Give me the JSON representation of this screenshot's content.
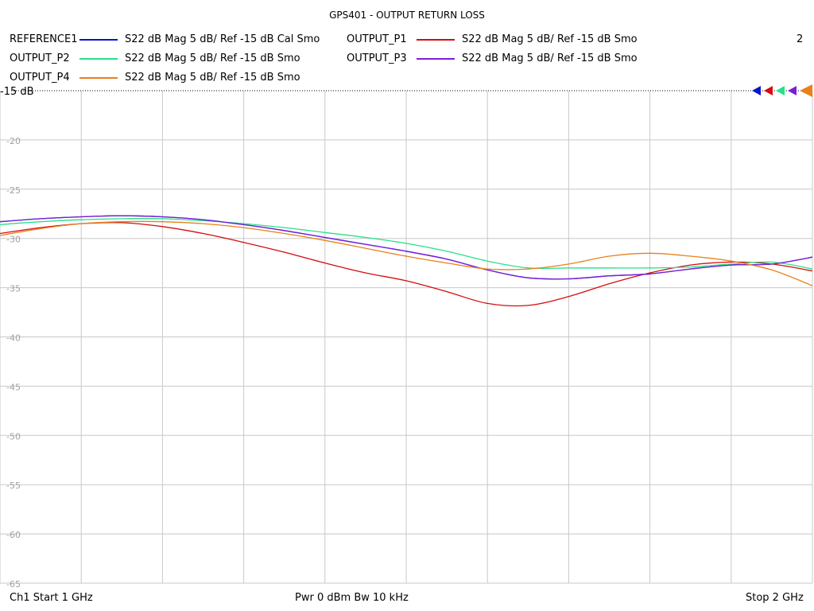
{
  "title": "GPS401 - OUTPUT RETURN LOSS",
  "channel_number": "2",
  "legend": [
    {
      "name": "REFERENCE1",
      "desc": "S22  dB Mag  5 dB/ Ref -15 dB  Cal Smo",
      "color": "#0a14c8"
    },
    {
      "name": "OUTPUT_P1",
      "desc": "S22  dB Mag  5 dB/ Ref -15 dB  Smo",
      "color": "#d40d0d"
    },
    {
      "name": "OUTPUT_P2",
      "desc": "S22  dB Mag  5 dB/ Ref -15 dB  Smo",
      "color": "#27e08a"
    },
    {
      "name": "OUTPUT_P3",
      "desc": "S22  dB Mag  5 dB/ Ref -15 dB  Smo",
      "color": "#7b1fd6"
    },
    {
      "name": "OUTPUT_P4",
      "desc": "S22  dB Mag  5 dB/ Ref -15 dB  Smo",
      "color": "#e8801c"
    }
  ],
  "footer": {
    "start": "Ch1  Start  1 GHz",
    "power": "Pwr  0 dBm  Bw  10 kHz",
    "stop": "Stop  2 GHz"
  },
  "chart_data": {
    "type": "line",
    "x_unit": "GHz",
    "xlim": [
      1.0,
      2.0
    ],
    "ylim": [
      -65,
      -15
    ],
    "y_ticks": [
      -15,
      -20,
      -25,
      -30,
      -35,
      -40,
      -45,
      -50,
      -55,
      -60,
      -65
    ],
    "y_tick_labels": [
      "-15 dB",
      "-20",
      "-25",
      "-30",
      "-35",
      "-40",
      "-45",
      "-50",
      "-55",
      "-60",
      "-65"
    ],
    "x_divisions": 10,
    "grid": true,
    "reference_line": -15,
    "x": [
      1.0,
      1.05,
      1.1,
      1.15,
      1.2,
      1.25,
      1.3,
      1.35,
      1.4,
      1.45,
      1.5,
      1.55,
      1.6,
      1.65,
      1.7,
      1.75,
      1.8,
      1.85,
      1.9,
      1.95,
      2.0
    ],
    "series": [
      {
        "name": "REFERENCE1",
        "color": "#0a14c8",
        "values": [
          -28.3,
          -28.0,
          -27.8,
          -27.7,
          -27.8,
          -28.1,
          -28.6,
          -29.2,
          -29.9,
          -30.6,
          -31.3,
          -32.1,
          -33.2,
          -34.0,
          -34.1,
          -33.8,
          -33.6,
          -33.1,
          -32.7,
          -32.6,
          -31.9
        ]
      },
      {
        "name": "OUTPUT_P1",
        "color": "#d40d0d",
        "values": [
          -29.5,
          -28.9,
          -28.5,
          -28.4,
          -28.8,
          -29.5,
          -30.4,
          -31.4,
          -32.5,
          -33.5,
          -34.3,
          -35.4,
          -36.6,
          -36.8,
          -35.9,
          -34.6,
          -33.5,
          -32.7,
          -32.4,
          -32.6,
          -33.3
        ]
      },
      {
        "name": "OUTPUT_P2",
        "color": "#27e08a",
        "values": [
          -28.6,
          -28.3,
          -28.1,
          -28.0,
          -28.0,
          -28.2,
          -28.5,
          -28.9,
          -29.4,
          -29.9,
          -30.5,
          -31.3,
          -32.3,
          -33.0,
          -33.0,
          -33.0,
          -33.0,
          -32.9,
          -32.6,
          -32.4,
          -33.1
        ]
      },
      {
        "name": "OUTPUT_P3",
        "color": "#7b1fd6",
        "values": [
          -28.3,
          -28.0,
          -27.8,
          -27.7,
          -27.8,
          -28.1,
          -28.6,
          -29.2,
          -29.9,
          -30.6,
          -31.3,
          -32.1,
          -33.2,
          -34.0,
          -34.1,
          -33.8,
          -33.6,
          -33.1,
          -32.7,
          -32.6,
          -31.9
        ]
      },
      {
        "name": "OUTPUT_P4",
        "color": "#e8801c",
        "values": [
          -29.7,
          -29.0,
          -28.5,
          -28.3,
          -28.3,
          -28.5,
          -28.9,
          -29.5,
          -30.2,
          -31.0,
          -31.8,
          -32.5,
          -33.1,
          -33.1,
          -32.6,
          -31.8,
          -31.5,
          -31.8,
          -32.3,
          -33.2,
          -34.8
        ]
      }
    ]
  }
}
